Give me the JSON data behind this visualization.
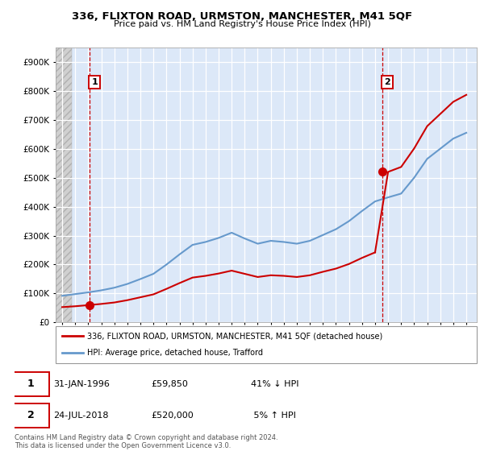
{
  "title": "336, FLIXTON ROAD, URMSTON, MANCHESTER, M41 5QF",
  "subtitle": "Price paid vs. HM Land Registry's House Price Index (HPI)",
  "ylim": [
    0,
    950000
  ],
  "xlim_start": 1993.5,
  "xlim_end": 2025.8,
  "sale1_x": 1996.08,
  "sale1_y": 59850,
  "sale2_x": 2018.56,
  "sale2_y": 520000,
  "sale1_label": "1",
  "sale2_label": "2",
  "legend_line1": "336, FLIXTON ROAD, URMSTON, MANCHESTER, M41 5QF (detached house)",
  "legend_line2": "HPI: Average price, detached house, Trafford",
  "footer": "Contains HM Land Registry data © Crown copyright and database right 2024.\nThis data is licensed under the Open Government Licence v3.0.",
  "color_red": "#cc0000",
  "color_blue": "#6699cc",
  "color_bg_chart": "#dce8f8",
  "hpi_years": [
    1994,
    1995,
    1996,
    1997,
    1998,
    1999,
    2000,
    2001,
    2002,
    2003,
    2004,
    2005,
    2006,
    2007,
    2008,
    2009,
    2010,
    2011,
    2012,
    2013,
    2014,
    2015,
    2016,
    2017,
    2018,
    2019,
    2020,
    2021,
    2022,
    2023,
    2024,
    2025
  ],
  "hpi_values": [
    92000,
    98000,
    104000,
    111000,
    120000,
    133000,
    150000,
    168000,
    200000,
    235000,
    268000,
    278000,
    292000,
    310000,
    290000,
    272000,
    282000,
    278000,
    272000,
    282000,
    302000,
    322000,
    350000,
    385000,
    418000,
    432000,
    445000,
    500000,
    565000,
    600000,
    635000,
    655000
  ],
  "red_years": [
    1994,
    1995,
    1996,
    1997,
    1998,
    1999,
    2000,
    2001,
    2002,
    2003,
    2004,
    2005,
    2006,
    2007,
    2008,
    2009,
    2010,
    2011,
    2012,
    2013,
    2014,
    2015,
    2016,
    2017,
    2018,
    2019,
    2020,
    2021,
    2022,
    2023,
    2024,
    2025
  ],
  "red_values": [
    53000,
    56000,
    59850,
    64000,
    69000,
    77000,
    87000,
    97000,
    116000,
    136000,
    155000,
    161000,
    169000,
    179000,
    168000,
    157000,
    163000,
    161000,
    157000,
    163000,
    175000,
    186000,
    202000,
    223000,
    242000,
    520000,
    537000,
    601000,
    678000,
    720000,
    762000,
    786000
  ]
}
